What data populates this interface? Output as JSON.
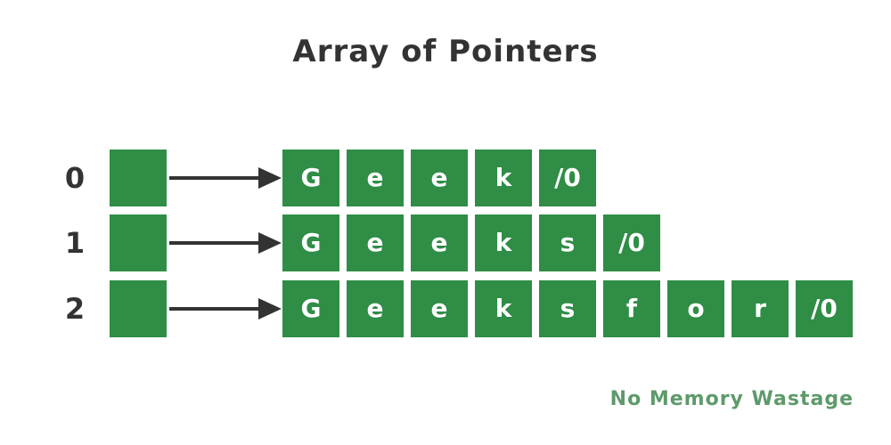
{
  "title": "Array of Pointers",
  "rows": [
    {
      "index": "0",
      "chars": [
        "G",
        "e",
        "e",
        "k",
        "/0"
      ]
    },
    {
      "index": "1",
      "chars": [
        "G",
        "e",
        "e",
        "k",
        "s",
        "/0"
      ]
    },
    {
      "index": "2",
      "chars": [
        "G",
        "e",
        "e",
        "k",
        "s",
        "f",
        "o",
        "r",
        "/0"
      ]
    }
  ],
  "note": "No Memory Wastage",
  "colors": {
    "cell_fill": "#2f8d46",
    "cell_text": "#ffffff",
    "label_text": "#333333",
    "arrow": "#333333",
    "note_text": "#5e9a6a"
  }
}
